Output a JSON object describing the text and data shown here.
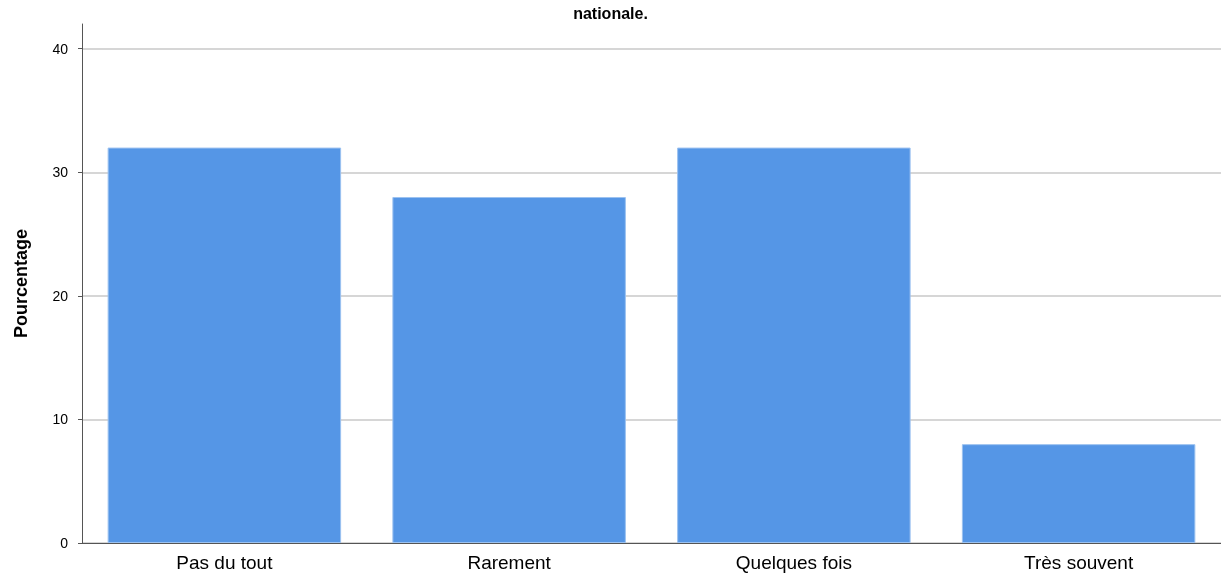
{
  "chart_data": {
    "type": "bar",
    "title": "nationale.",
    "ylabel": "Pourcentage",
    "categories": [
      "Pas du tout",
      "Rarement",
      "Quelques fois",
      "Très souvent"
    ],
    "values": [
      32,
      28,
      32,
      8
    ],
    "color": "#5596e6",
    "ylim": [
      0,
      42
    ],
    "yticks": [
      0,
      10,
      20,
      30,
      40
    ],
    "grid": "y"
  }
}
